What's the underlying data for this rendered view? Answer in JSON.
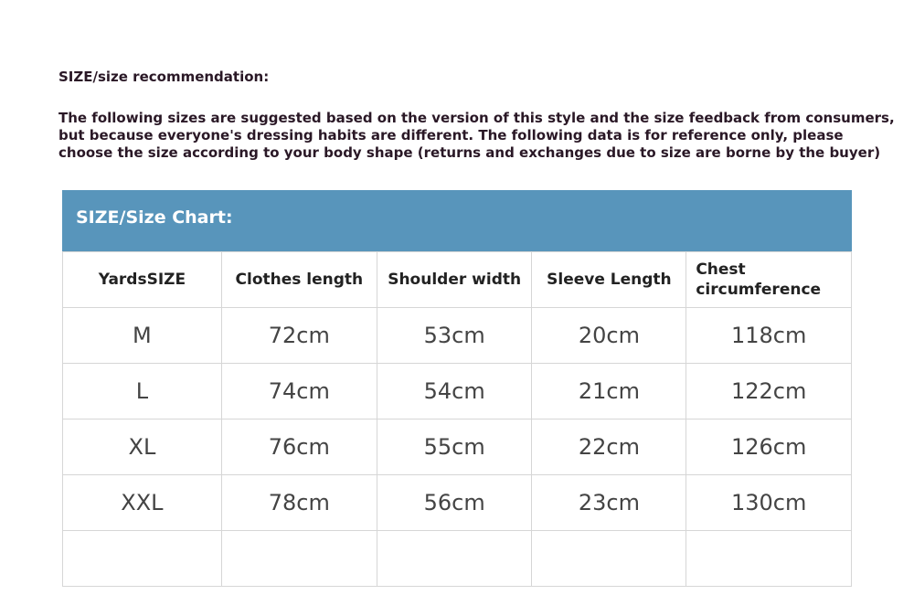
{
  "heading": "SIZE/size recommendation:",
  "intro_lines": [
    "The following sizes are suggested based on the version of this style and the size feedback from consumers,",
    "but because everyone's dressing habits are different. The following data is for reference only, please",
    "choose the size according to your body shape (returns and exchanges due to size are borne by the buyer)"
  ],
  "band_title": "SIZE/Size Chart:",
  "band_color": "#5895bb",
  "columns": [
    "YardsSIZE",
    "Clothes length",
    "Shoulder width",
    "Sleeve Length",
    "Chest circumference"
  ],
  "rows": [
    [
      "M",
      "72cm",
      "53cm",
      "20cm",
      "118cm"
    ],
    [
      "L",
      "74cm",
      "54cm",
      "21cm",
      "122cm"
    ],
    [
      "XL",
      "76cm",
      "55cm",
      "22cm",
      "126cm"
    ],
    [
      "XXL",
      "78cm",
      "56cm",
      "23cm",
      "130cm"
    ],
    [
      "",
      "",
      "",
      "",
      ""
    ]
  ]
}
